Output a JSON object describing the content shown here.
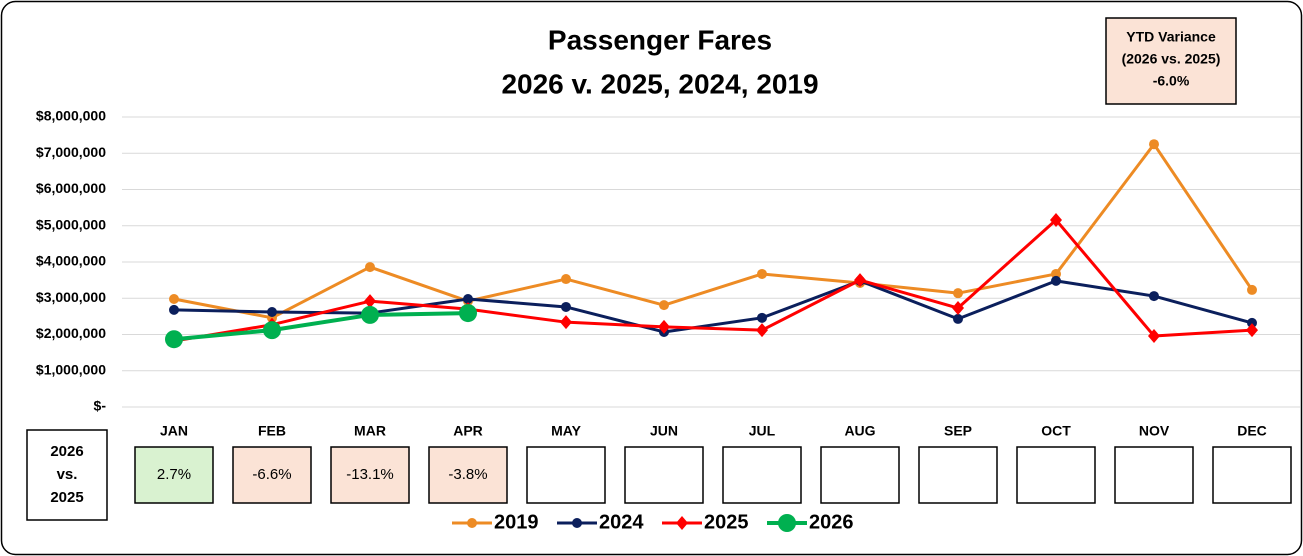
{
  "chart_data": {
    "type": "line",
    "title": "Passenger Fares",
    "subtitle": "2026 v.  2025, 2024, 2019",
    "annotation": [
      "YTD Variance",
      "(2026 vs. 2025)",
      "-6.0%"
    ],
    "categories": [
      "JAN",
      "FEB",
      "MAR",
      "APR",
      "MAY",
      "JUN",
      "JUL",
      "AUG",
      "SEP",
      "OCT",
      "NOV",
      "DEC"
    ],
    "series": [
      {
        "name": "2019",
        "color": "#ED8B24",
        "marker": "circle",
        "values": [
          2980000,
          2460000,
          3860000,
          2920000,
          3530000,
          2810000,
          3670000,
          3420000,
          3140000,
          3670000,
          7250000,
          3230000
        ]
      },
      {
        "name": "2024",
        "color": "#0B1F5C",
        "marker": "circle",
        "values": [
          2680000,
          2620000,
          2590000,
          2980000,
          2760000,
          2070000,
          2460000,
          3480000,
          2430000,
          3480000,
          3060000,
          2320000
        ]
      },
      {
        "name": "2025",
        "color": "#FF0000",
        "marker": "diamond",
        "values": [
          1820000,
          2270000,
          2920000,
          2700000,
          2340000,
          2210000,
          2120000,
          3500000,
          2730000,
          5160000,
          1960000,
          2120000
        ]
      },
      {
        "name": "2026",
        "color": "#00B050",
        "marker": "circle",
        "values": [
          1870000,
          2120000,
          2540000,
          2590000,
          null,
          null,
          null,
          null,
          null,
          null,
          null,
          null
        ]
      }
    ],
    "variance_label": [
      "2026",
      "vs.",
      "2025"
    ],
    "variance": [
      "2.7%",
      "-6.6%",
      "-13.1%",
      "-3.8%",
      null,
      null,
      null,
      null,
      null,
      null,
      null,
      null
    ],
    "ylim": [
      0,
      8000000
    ],
    "yticks": [
      {
        "value": 0,
        "label": "$-"
      },
      {
        "value": 1000000,
        "label": "$1,000,000"
      },
      {
        "value": 2000000,
        "label": "$2,000,000"
      },
      {
        "value": 3000000,
        "label": "$3,000,000"
      },
      {
        "value": 4000000,
        "label": "$4,000,000"
      },
      {
        "value": 5000000,
        "label": "$5,000,000"
      },
      {
        "value": 6000000,
        "label": "$6,000,000"
      },
      {
        "value": 7000000,
        "label": "$7,000,000"
      },
      {
        "value": 8000000,
        "label": "$8,000,000"
      }
    ],
    "grid": true
  }
}
